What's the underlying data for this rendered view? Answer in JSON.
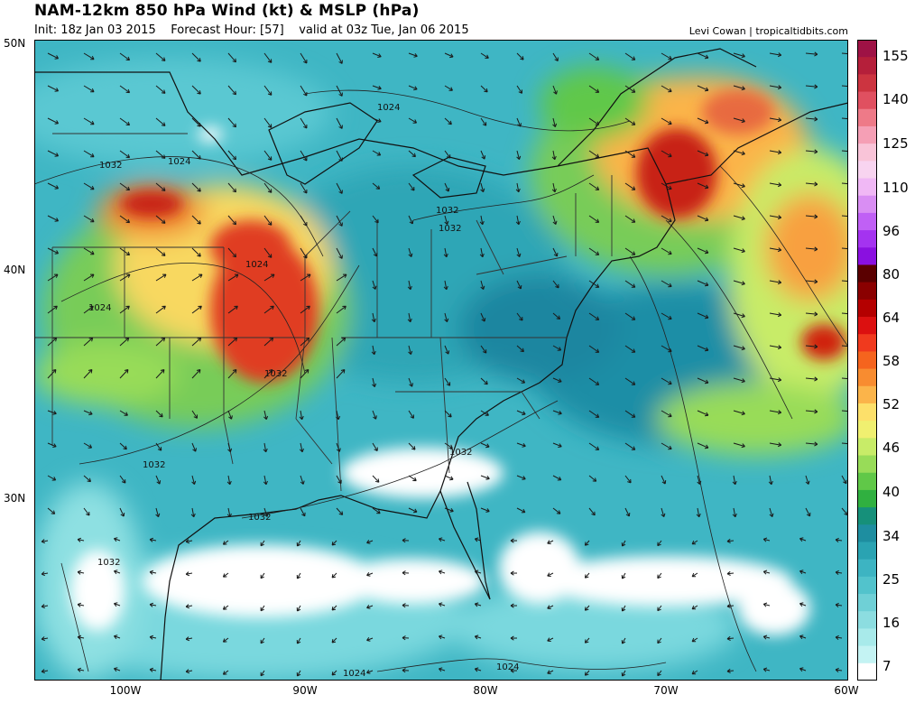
{
  "header": {
    "title": "NAM-12km 850 hPa Wind (kt) & MSLP (hPa)",
    "init": "Init: 18z Jan 03 2015",
    "forecast_hour": "Forecast Hour: [57]",
    "valid": "valid at 03z Tue, Jan 06 2015",
    "credit": "Levi Cowan | tropicaltidbits.com"
  },
  "map": {
    "lon_labels": [
      "100W",
      "90W",
      "80W",
      "70W",
      "60W"
    ],
    "lat_labels": [
      "50N",
      "40N",
      "30N"
    ],
    "isobar_labels": [
      "1024",
      "1032",
      "1024",
      "1032",
      "1032",
      "1024",
      "1032",
      "1032",
      "1032",
      "1032",
      "1032",
      "1024",
      "1024",
      "1024"
    ]
  },
  "colorbar": {
    "labels": [
      "155",
      "140",
      "125",
      "110",
      "96",
      "80",
      "64",
      "58",
      "52",
      "46",
      "40",
      "34",
      "25",
      "16",
      "7"
    ],
    "colors": [
      "#9e1245",
      "#b51f3a",
      "#cc3440",
      "#e05060",
      "#ee7a88",
      "#f59fb5",
      "#f9c4d8",
      "#f8d4f0",
      "#f0b8f5",
      "#d98ef3",
      "#c060f5",
      "#a433f0",
      "#8a10e0",
      "#5a0000",
      "#8a0000",
      "#b40000",
      "#dc1010",
      "#f03a1e",
      "#f5641e",
      "#f88c30",
      "#fbb44a",
      "#fde06a",
      "#f0f070",
      "#c8ec68",
      "#98dc58",
      "#60c848",
      "#30b040",
      "#16907a",
      "#1e8ea0",
      "#2aa3b2",
      "#3db4c2",
      "#52c3cc",
      "#6fd0d6",
      "#8cdde0",
      "#a8eaea",
      "#c4f3f3",
      "#ffffff"
    ]
  }
}
